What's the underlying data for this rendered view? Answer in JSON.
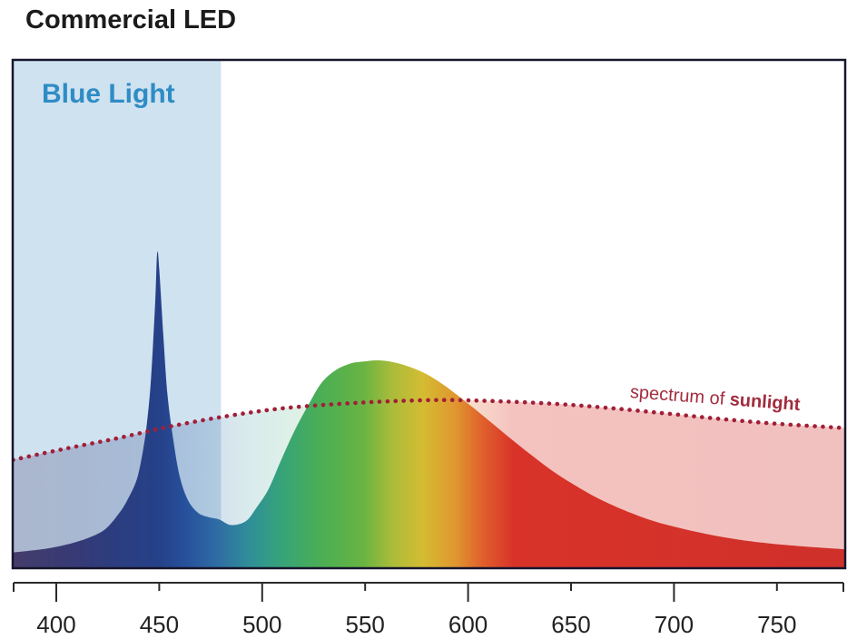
{
  "title": "Commercial LED",
  "labels": {
    "blue_light": "Blue Light",
    "sunlight_prefix": "spectrum of ",
    "sunlight_bold": "sunlight"
  },
  "colors": {
    "title_text": "#1b1b1b",
    "blue_light_band": "#cfe2f0",
    "blue_light_text": "#2e8cc5",
    "sunlight_dots": "#a11f38",
    "sunlight_text": "#a22c3d",
    "axis": "#2a2a2a",
    "plot_border": "#16162c",
    "tick_label": "#222222"
  },
  "chart_data": {
    "type": "area",
    "title": "Commercial LED",
    "xlabel": "",
    "ylabel": "",
    "grid": false,
    "x_ticks": [
      400,
      450,
      500,
      550,
      600,
      650,
      700,
      750
    ],
    "x_major_ticks": [
      400,
      500,
      600,
      700
    ],
    "x_minor_ticks": [
      450,
      550,
      650,
      750
    ],
    "x_range_nm": [
      379,
      783
    ],
    "y_range_relative": [
      0,
      1.05
    ],
    "blue_light_band_nm": [
      379,
      480
    ],
    "spectrum_gradient": [
      {
        "nm": 380,
        "color": "#443c6b",
        "sun_alpha": 0.26
      },
      {
        "nm": 410,
        "color": "#363a76",
        "sun_alpha": 0.25
      },
      {
        "nm": 428,
        "color": "#2c3d7f",
        "sun_alpha": 0.24
      },
      {
        "nm": 450,
        "color": "#254189",
        "sun_alpha": 0.23
      },
      {
        "nm": 463,
        "color": "#27519c",
        "sun_alpha": 0.22
      },
      {
        "nm": 479,
        "color": "#2f6ea4",
        "sun_alpha": 0.2
      },
      {
        "nm": 494,
        "color": "#2f8f98",
        "sun_alpha": 0.18
      },
      {
        "nm": 510,
        "color": "#37a478",
        "sun_alpha": 0.17
      },
      {
        "nm": 528,
        "color": "#4aae55",
        "sun_alpha": 0.16
      },
      {
        "nm": 549,
        "color": "#68b442",
        "sun_alpha": 0.16
      },
      {
        "nm": 563,
        "color": "#aabc3a",
        "sun_alpha": 0.17
      },
      {
        "nm": 578,
        "color": "#d4bc32",
        "sun_alpha": 0.18
      },
      {
        "nm": 594,
        "color": "#e0962f",
        "sun_alpha": 0.22
      },
      {
        "nm": 607,
        "color": "#e0602c",
        "sun_alpha": 0.26
      },
      {
        "nm": 622,
        "color": "#d93329",
        "sun_alpha": 0.3
      },
      {
        "nm": 783,
        "color": "#cf302a",
        "sun_alpha": 0.3
      }
    ],
    "series": [
      {
        "name": "Commercial LED emission",
        "render": "opaque-gradient-area",
        "points": [
          [
            379,
            0.05
          ],
          [
            395,
            0.062
          ],
          [
            408,
            0.08
          ],
          [
            417,
            0.1
          ],
          [
            424,
            0.125
          ],
          [
            430,
            0.17
          ],
          [
            434,
            0.21
          ],
          [
            439,
            0.28
          ],
          [
            442,
            0.37
          ],
          [
            444,
            0.46
          ],
          [
            446,
            0.6
          ],
          [
            448,
            0.84
          ],
          [
            449,
            1.0
          ],
          [
            450,
            0.95
          ],
          [
            452,
            0.74
          ],
          [
            454,
            0.55
          ],
          [
            457,
            0.4
          ],
          [
            460,
            0.29
          ],
          [
            464,
            0.215
          ],
          [
            469,
            0.175
          ],
          [
            474,
            0.162
          ],
          [
            479,
            0.155
          ],
          [
            485,
            0.137
          ],
          [
            492,
            0.149
          ],
          [
            497,
            0.19
          ],
          [
            503,
            0.25
          ],
          [
            509,
            0.34
          ],
          [
            516,
            0.44
          ],
          [
            523,
            0.525
          ],
          [
            529,
            0.59
          ],
          [
            536,
            0.63
          ],
          [
            543,
            0.65
          ],
          [
            549,
            0.656
          ],
          [
            556,
            0.66
          ],
          [
            563,
            0.655
          ],
          [
            569,
            0.645
          ],
          [
            576,
            0.628
          ],
          [
            582,
            0.608
          ],
          [
            589,
            0.578
          ],
          [
            595,
            0.548
          ],
          [
            602,
            0.512
          ],
          [
            611,
            0.464
          ],
          [
            620,
            0.415
          ],
          [
            631,
            0.358
          ],
          [
            642,
            0.304
          ],
          [
            653,
            0.259
          ],
          [
            664,
            0.219
          ],
          [
            677,
            0.181
          ],
          [
            690,
            0.15
          ],
          [
            703,
            0.127
          ],
          [
            717,
            0.107
          ],
          [
            732,
            0.09
          ],
          [
            747,
            0.078
          ],
          [
            765,
            0.068
          ],
          [
            783,
            0.06
          ]
        ]
      },
      {
        "name": "spectrum of sunlight",
        "render": "dotted-line-tinted-area",
        "points": [
          [
            379,
            0.344
          ],
          [
            404,
            0.379
          ],
          [
            430,
            0.413
          ],
          [
            456,
            0.451
          ],
          [
            483,
            0.483
          ],
          [
            509,
            0.507
          ],
          [
            536,
            0.521
          ],
          [
            562,
            0.53
          ],
          [
            589,
            0.534
          ],
          [
            615,
            0.53
          ],
          [
            642,
            0.522
          ],
          [
            668,
            0.509
          ],
          [
            695,
            0.492
          ],
          [
            721,
            0.475
          ],
          [
            747,
            0.46
          ],
          [
            783,
            0.445
          ]
        ]
      }
    ]
  }
}
